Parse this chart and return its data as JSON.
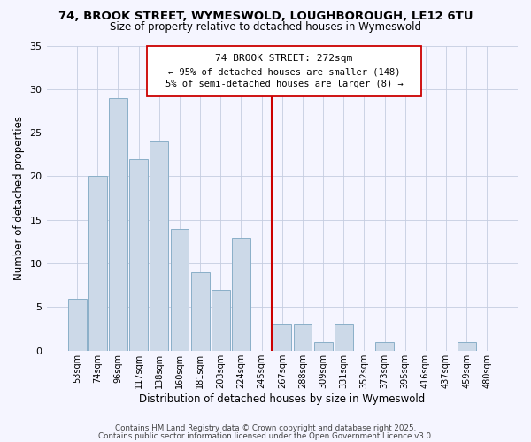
{
  "title": "74, BROOK STREET, WYMESWOLD, LOUGHBOROUGH, LE12 6TU",
  "subtitle": "Size of property relative to detached houses in Wymeswold",
  "xlabel": "Distribution of detached houses by size in Wymeswold",
  "ylabel": "Number of detached properties",
  "bar_color": "#ccd9e8",
  "bar_edge_color": "#8aafc8",
  "categories": [
    "53sqm",
    "74sqm",
    "96sqm",
    "117sqm",
    "138sqm",
    "160sqm",
    "181sqm",
    "203sqm",
    "224sqm",
    "245sqm",
    "267sqm",
    "288sqm",
    "309sqm",
    "331sqm",
    "352sqm",
    "373sqm",
    "395sqm",
    "416sqm",
    "437sqm",
    "459sqm",
    "480sqm"
  ],
  "values": [
    6,
    20,
    29,
    22,
    24,
    14,
    9,
    7,
    13,
    0,
    3,
    3,
    1,
    3,
    0,
    1,
    0,
    0,
    0,
    1,
    0
  ],
  "ylim": [
    0,
    35
  ],
  "yticks": [
    0,
    5,
    10,
    15,
    20,
    25,
    30,
    35
  ],
  "vline_color": "#cc0000",
  "annotation_line1": "74 BROOK STREET: 272sqm",
  "annotation_line2": "← 95% of detached houses are smaller (148)",
  "annotation_line3": "5% of semi-detached houses are larger (8) →",
  "footer1": "Contains HM Land Registry data © Crown copyright and database right 2025.",
  "footer2": "Contains public sector information licensed under the Open Government Licence v3.0.",
  "background_color": "#f5f5ff",
  "grid_color": "#c5cde0"
}
